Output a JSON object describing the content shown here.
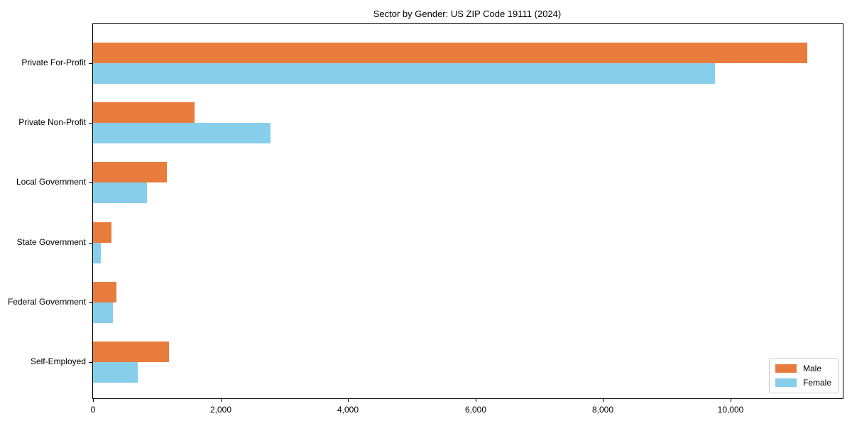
{
  "figure": {
    "title": "Sector by Gender: US ZIP Code 19111 (2024)"
  },
  "chart_data": {
    "type": "bar",
    "orientation": "horizontal",
    "title": "Sector by Gender: US ZIP Code 19111 (2024)",
    "categories": [
      "Private For-Profit",
      "Private Non-Profit",
      "Local Government",
      "State Government",
      "Federal Government",
      "Self-Employed"
    ],
    "series": [
      {
        "name": "Male",
        "color": "#e87c3c",
        "values": [
          11200,
          1590,
          1160,
          290,
          370,
          1195
        ]
      },
      {
        "name": "Female",
        "color": "#87ceeb",
        "values": [
          9750,
          2780,
          850,
          125,
          315,
          700
        ]
      }
    ],
    "xlabel": "",
    "ylabel": "",
    "xlim": [
      0,
      11760
    ],
    "xticks": [
      0,
      2000,
      4000,
      6000,
      8000,
      10000
    ],
    "xtick_labels": [
      "0",
      "2,000",
      "4,000",
      "6,000",
      "8,000",
      "10,000"
    ],
    "grid": false,
    "background_color": "#ffffff",
    "spine_color": "#000000",
    "legend": {
      "position": "lower right",
      "entries": [
        "Male",
        "Female"
      ]
    }
  }
}
